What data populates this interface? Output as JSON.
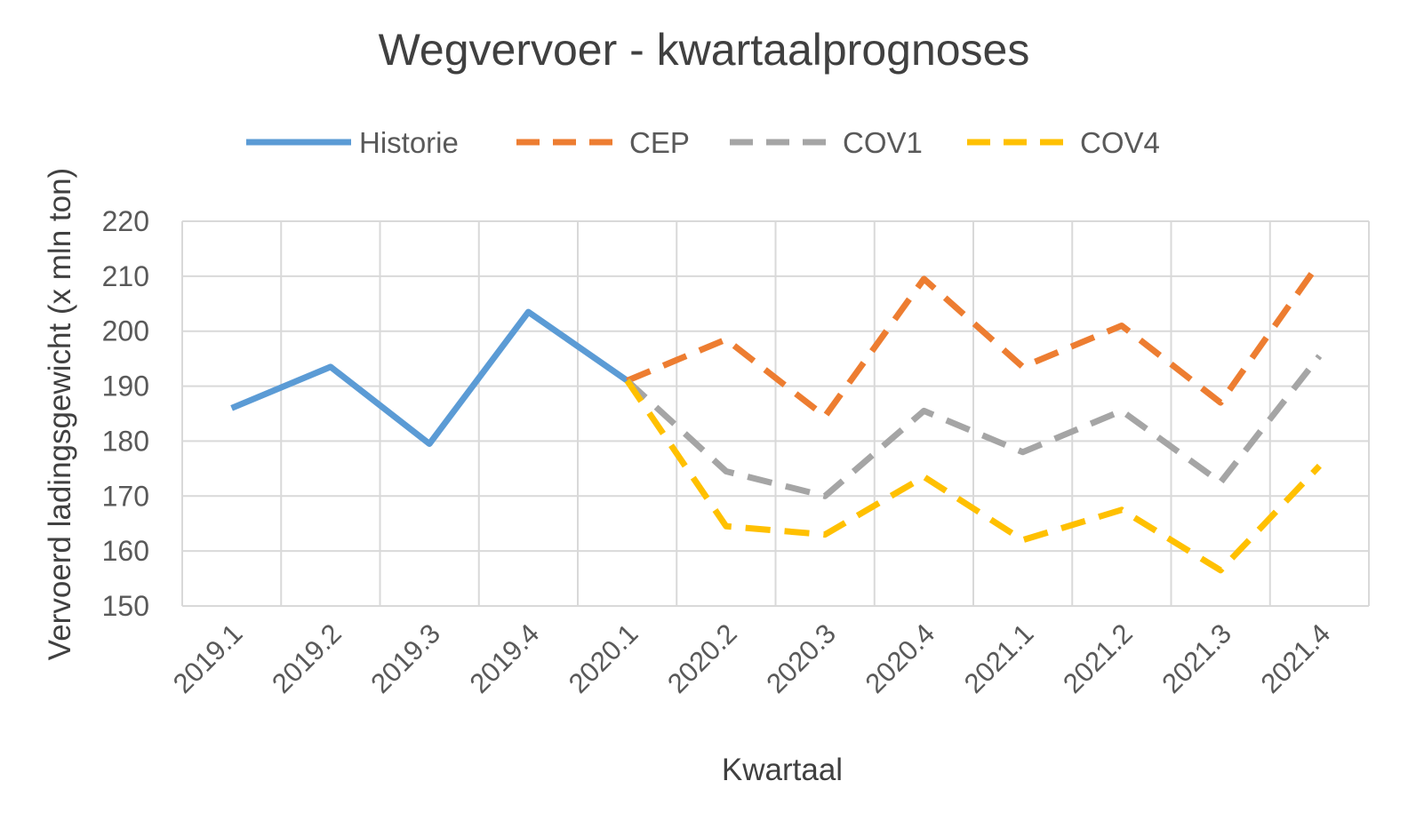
{
  "chart_data": {
    "type": "line",
    "title": "Wegvervoer - kwartaalprognoses",
    "xlabel": "Kwartaal",
    "ylabel": "Vervoerd ladingsgewicht (x mln ton)",
    "ylim": [
      150,
      220
    ],
    "yticks": [
      150,
      160,
      170,
      180,
      190,
      200,
      210,
      220
    ],
    "grid": true,
    "legend_position": "top",
    "categories": [
      "2019.1",
      "2019.2",
      "2019.3",
      "2019.4",
      "2020.1",
      "2020.2",
      "2020.3",
      "2020.4",
      "2021.1",
      "2021.2",
      "2021.3",
      "2021.4"
    ],
    "series": [
      {
        "name": "Historie",
        "color": "#5b9bd5",
        "style": "solid",
        "values": [
          186,
          193.5,
          179.5,
          203.5,
          191,
          null,
          null,
          null,
          null,
          null,
          null,
          null
        ]
      },
      {
        "name": "CEP",
        "color": "#ed7d31",
        "style": "dashed",
        "values": [
          null,
          null,
          null,
          null,
          191,
          198.5,
          184.5,
          209.5,
          193.5,
          201,
          187,
          212.5
        ]
      },
      {
        "name": "COV1",
        "color": "#a5a5a5",
        "style": "dashed",
        "values": [
          null,
          null,
          null,
          null,
          191,
          174.5,
          170,
          185.5,
          178,
          185.5,
          172.5,
          195.5
        ]
      },
      {
        "name": "COV4",
        "color": "#ffc000",
        "style": "dashed",
        "values": [
          null,
          null,
          null,
          null,
          191,
          164.5,
          163,
          173.5,
          162,
          167.5,
          156.5,
          175.5
        ]
      }
    ]
  }
}
